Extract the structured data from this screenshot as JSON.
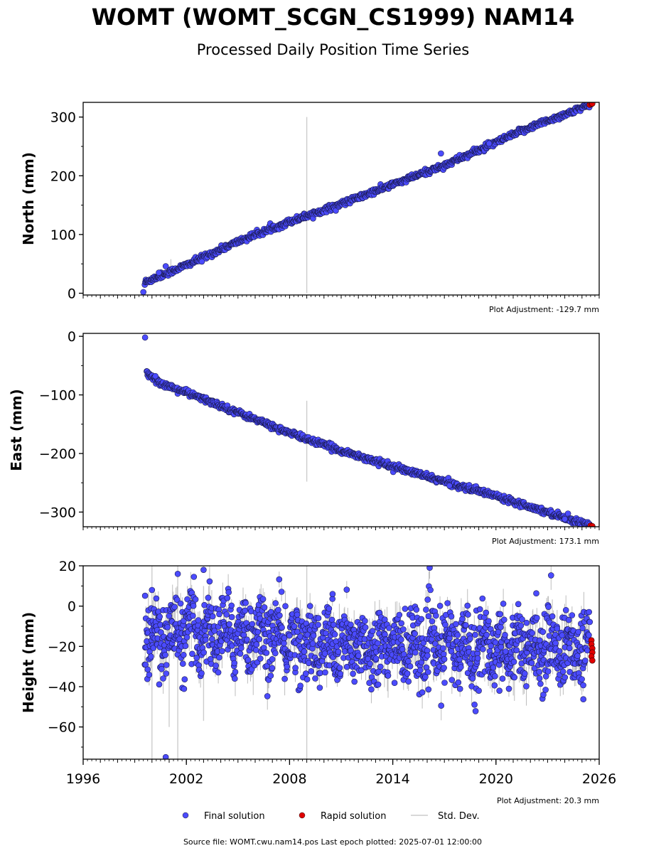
{
  "header": {
    "title": "WOMT (WOMT_SCGN_CS1999) NAM14",
    "subtitle": "Processed Daily Position Time Series"
  },
  "chart_data": [
    {
      "type": "scatter",
      "panel": "north",
      "ylabel": "North (mm)",
      "ylim": [
        -3,
        325
      ],
      "yticks": [
        0,
        100,
        200,
        300
      ],
      "ytick_labels": [
        "0",
        "100",
        "200",
        "300"
      ],
      "xlim": [
        1996,
        2026
      ],
      "adjustment": "Plot Adjustment: -129.7 mm",
      "series": [
        {
          "name": "Final solution",
          "color": "#4b4bff",
          "trend": [
            [
              1999.5,
              0
            ],
            [
              1999.6,
              19
            ],
            [
              2002.0,
              48
            ],
            [
              2005.0,
              88
            ],
            [
              2008.0,
              122
            ],
            [
              2011.0,
              152
            ],
            [
              2014.0,
              185
            ],
            [
              2017.0,
              218
            ],
            [
              2019.5,
              250
            ],
            [
              2022.0,
              283
            ],
            [
              2025.45,
              320
            ]
          ],
          "noise": 2.5,
          "outliers": [
            [
              1999.5,
              2
            ],
            [
              2000.4,
              35
            ],
            [
              2000.8,
              46
            ],
            [
              2002.9,
              54
            ],
            [
              2016.8,
              238
            ],
            [
              2019.6,
              255
            ]
          ]
        },
        {
          "name": "Rapid solution",
          "color": "#e00000",
          "points": [
            [
              2025.45,
              321
            ],
            [
              2025.55,
              322
            ],
            [
              2025.6,
              323
            ]
          ]
        }
      ],
      "stddev_spikes": [
        {
          "x": 2009.0,
          "y0": 0,
          "y1": 300
        },
        {
          "x": 2001.1,
          "y0": 25,
          "y1": 58
        }
      ]
    },
    {
      "type": "scatter",
      "panel": "east",
      "ylabel": "East (mm)",
      "ylim": [
        -325,
        5
      ],
      "yticks": [
        0,
        -100,
        -200,
        -300
      ],
      "ytick_labels": [
        "0",
        "−100",
        "−200",
        "−300"
      ],
      "xlim": [
        1996,
        2026
      ],
      "adjustment": "Plot Adjustment: 173.1 mm",
      "series": [
        {
          "name": "Final solution",
          "color": "#4b4bff",
          "trend": [
            [
              1999.6,
              0
            ],
            [
              1999.65,
              -62
            ],
            [
              2000.5,
              -80
            ],
            [
              2002.0,
              -96
            ],
            [
              2005.0,
              -130
            ],
            [
              2008.0,
              -165
            ],
            [
              2011.0,
              -195
            ],
            [
              2014.0,
              -222
            ],
            [
              2017.0,
              -248
            ],
            [
              2020.0,
              -272
            ],
            [
              2023.0,
              -300
            ],
            [
              2025.45,
              -323
            ]
          ],
          "noise": 2.5,
          "outliers": [
            [
              1999.6,
              -2
            ],
            [
              2000.2,
              -68
            ],
            [
              2017.3,
              -255
            ],
            [
              2024.0,
              -312
            ]
          ]
        },
        {
          "name": "Rapid solution",
          "color": "#e00000",
          "points": [
            [
              2025.5,
              -323
            ],
            [
              2025.6,
              -324
            ]
          ]
        }
      ],
      "stddev_spikes": [
        {
          "x": 2009.0,
          "y0": -110,
          "y1": -248
        }
      ]
    },
    {
      "type": "scatter",
      "panel": "height",
      "ylabel": "Height (mm)",
      "ylim": [
        -76,
        20
      ],
      "yticks": [
        20,
        0,
        -20,
        -40,
        -60
      ],
      "ytick_labels": [
        "20",
        "0",
        "−20",
        "−40",
        "−60"
      ],
      "xlim": [
        1996,
        2026
      ],
      "xticks": [
        1996,
        2002,
        2008,
        2014,
        2020,
        2026
      ],
      "xtick_labels": [
        "1996",
        "2002",
        "2008",
        "2014",
        "2020",
        "2026"
      ],
      "adjustment": "Plot Adjustment: 20.3 mm",
      "series": [
        {
          "name": "Final solution",
          "color": "#4b4bff",
          "trend": [
            [
              1999.5,
              -15
            ],
            [
              2003.0,
              -13
            ],
            [
              2006.0,
              -14
            ],
            [
              2010.0,
              -20
            ],
            [
              2015.0,
              -20
            ],
            [
              2020.0,
              -20
            ],
            [
              2023.0,
              -20
            ],
            [
              2025.45,
              -22
            ]
          ],
          "noise": 9,
          "outliers": [
            [
              2001.5,
              16
            ],
            [
              2003.0,
              18
            ],
            [
              2000.0,
              8
            ],
            [
              2010.5,
              6
            ],
            [
              2000.8,
              -75
            ],
            [
              2019.0,
              -42
            ],
            [
              2020.2,
              -42
            ]
          ]
        },
        {
          "name": "Rapid solution",
          "color": "#e00000",
          "points": [
            [
              2025.55,
              -17
            ],
            [
              2025.55,
              -19
            ],
            [
              2025.6,
              -21
            ],
            [
              2025.6,
              -23
            ],
            [
              2025.55,
              -25
            ],
            [
              2025.6,
              -27
            ]
          ]
        }
      ],
      "stddev_spikes": [
        {
          "x": 2009.0,
          "y0": 20,
          "y1": -76
        },
        {
          "x": 2000.0,
          "y0": 20,
          "y1": -76
        },
        {
          "x": 2001.5,
          "y0": 20,
          "y1": -76
        },
        {
          "x": 2003.0,
          "y0": 10,
          "y1": -57
        },
        {
          "x": 2001.0,
          "y0": -20,
          "y1": -60
        }
      ]
    }
  ],
  "legend": {
    "items": [
      {
        "label": "Final solution",
        "marker": "dot",
        "color": "#4b4bff"
      },
      {
        "label": "Rapid solution",
        "marker": "dot",
        "color": "#e00000"
      },
      {
        "label": "Std. Dev.",
        "marker": "line",
        "color": "#cccccc"
      }
    ]
  },
  "footer": {
    "source": "Source file: WOMT.cwu.nam14.pos  Last epoch plotted: 2025-07-01 12:00:00"
  }
}
